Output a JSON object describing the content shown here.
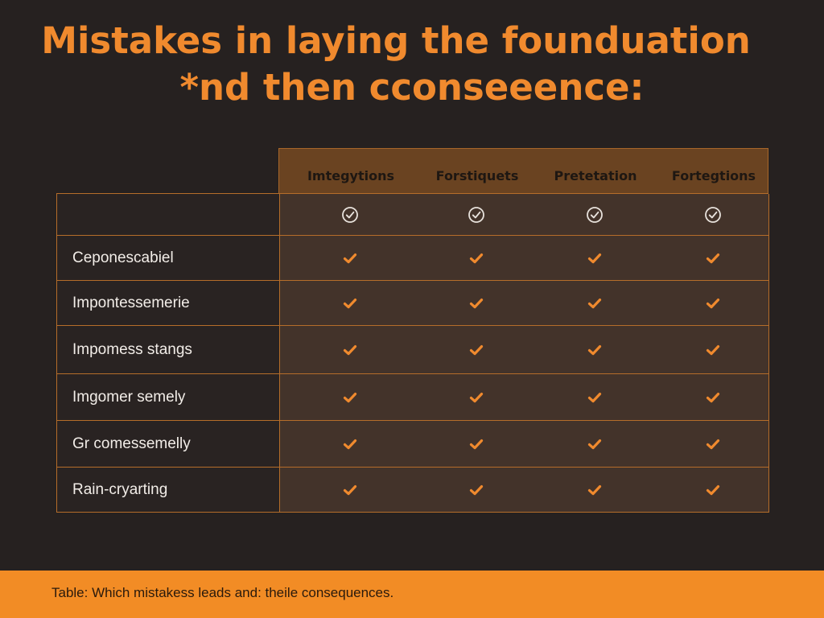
{
  "title": {
    "line1": "Mistakes in laying the founduation",
    "line2": "*nd then cconseeence:"
  },
  "table": {
    "columns": [
      "Imtegytions",
      "Forstiquets",
      "Pretetation",
      "Fortegtions"
    ],
    "header_marks": [
      "circle-check-icon",
      "circle-check-icon",
      "circle-check-icon",
      "circle-check-icon"
    ],
    "rows": [
      {
        "label": "Ceponescabiel",
        "marks": [
          "check-icon",
          "check-icon",
          "check-icon",
          "check-icon"
        ]
      },
      {
        "label": "Impontessemerie",
        "marks": [
          "check-icon",
          "check-icon",
          "check-icon",
          "check-icon"
        ]
      },
      {
        "label": "Impomess stangs",
        "marks": [
          "check-icon",
          "check-icon",
          "check-icon",
          "check-icon"
        ]
      },
      {
        "label": "Imgomer semely",
        "marks": [
          "check-icon",
          "check-icon",
          "check-icon",
          "check-icon"
        ]
      },
      {
        "label": "Gr comessemelly",
        "marks": [
          "check-icon",
          "check-icon",
          "check-icon",
          "check-icon"
        ]
      },
      {
        "label": "Rain-cryarting",
        "marks": [
          "check-icon",
          "check-icon",
          "check-icon",
          "check-icon"
        ]
      }
    ]
  },
  "footer": {
    "caption": "Table: Which mistakess leads and: theile consequences."
  },
  "colors": {
    "background": "#262120",
    "accent": "#f08a2e",
    "footer_band": "#f28c25",
    "header_band": "#6a4321",
    "data_area": "#43332a",
    "grid_line": "#b56d2a"
  }
}
